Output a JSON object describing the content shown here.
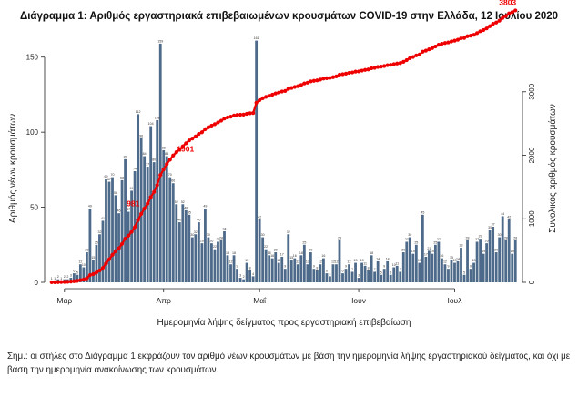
{
  "chart_data": {
    "type": "bar",
    "title": "Διάγραμμα 1: Αριθμός εργαστηριακά επιβεβαιωμένων κρουσμάτων COVID-19 στην Ελλάδα, 12 Ιουλίου 2020",
    "xlabel": "Ημερομηνία λήψης δείγματος προς εργαστηριακή επιβεβαίωση",
    "ylabel": "Αριθμός νέων κρουσμάτων",
    "y2label": "Συνολικός αριθμός κρουσμάτων",
    "x_start": "2020-02-26",
    "x_end": "2020-07-12",
    "ylim": [
      0,
      165
    ],
    "y2lim": [
      0,
      3900
    ],
    "yticks": [
      "0",
      "50",
      "100",
      "150"
    ],
    "y2ticks": [
      "0",
      "1000",
      "2000",
      "3000"
    ],
    "xticks": [
      {
        "label": "Μαρ",
        "date": "2020-03-01"
      },
      {
        "label": "Απρ",
        "date": "2020-04-01"
      },
      {
        "label": "Μαΐ",
        "date": "2020-05-01"
      },
      {
        "label": "Ιουν",
        "date": "2020-06-01"
      },
      {
        "label": "Ιουλ",
        "date": "2020-07-01"
      }
    ],
    "grid": false,
    "series": [
      {
        "values": [
          1,
          1,
          2,
          1,
          2,
          2,
          3,
          6,
          5,
          12,
          10,
          20,
          49,
          15,
          25,
          32,
          41,
          69,
          67,
          70,
          58,
          46,
          68,
          82,
          47,
          61,
          74,
          112,
          96,
          84,
          77,
          104,
          80,
          108,
          159,
          88,
          84,
          70,
          66,
          52,
          40,
          52,
          48,
          45,
          30,
          32,
          40,
          26,
          49,
          30,
          26,
          22,
          27,
          28,
          34,
          18,
          12,
          18,
          9,
          3,
          2,
          13,
          8,
          4,
          161,
          42,
          30,
          22,
          18,
          16,
          20,
          13,
          17,
          9,
          32,
          15,
          16,
          12,
          18,
          25,
          12,
          20,
          9,
          8,
          12,
          16,
          6,
          4,
          12,
          12,
          28,
          6,
          9,
          12,
          7,
          13,
          3,
          13,
          11,
          8,
          18,
          7,
          14,
          5,
          9,
          14,
          5,
          10,
          11,
          7,
          20,
          27,
          30,
          19,
          25,
          13,
          45,
          17,
          21,
          19,
          25,
          27,
          16,
          12,
          9,
          15,
          13,
          14,
          23,
          5,
          28,
          9,
          13,
          27,
          29,
          19,
          26,
          35,
          37,
          20,
          30,
          44,
          28,
          42,
          19,
          28
        ],
        "color": "#4d6a8a"
      },
      {
        "type": "line",
        "values": [
          1,
          2,
          4,
          5,
          7,
          9,
          12,
          18,
          23,
          35,
          45,
          65,
          114,
          129,
          154,
          186,
          227,
          296,
          363,
          433,
          491,
          537,
          605,
          687,
          734,
          795,
          869,
          981,
          1077,
          1161,
          1238,
          1342,
          1422,
          1530,
          1689,
          1777,
          1861,
          1931,
          1997,
          2049,
          2089,
          2141,
          2189,
          2234,
          2264,
          2296,
          2336,
          2362,
          2411,
          2441,
          2467,
          2489,
          2516,
          2544,
          2578,
          2596,
          2608,
          2626,
          2635,
          2638,
          2640,
          2653,
          2661,
          2665,
          2826,
          2868,
          2898,
          2920,
          2938,
          2954,
          2974,
          2987,
          3004,
          3013,
          3045,
          3060,
          3076,
          3088,
          3106,
          3131,
          3143,
          3163,
          3172,
          3180,
          3192,
          3208,
          3214,
          3218,
          3230,
          3242,
          3270,
          3276,
          3285,
          3297,
          3304,
          3317,
          3320,
          3333,
          3344,
          3352,
          3370,
          3377,
          3391,
          3396,
          3405,
          3419,
          3424,
          3434,
          3445,
          3452,
          3472,
          3499,
          3529,
          3548,
          3573,
          3586,
          3631,
          3648,
          3669,
          3688,
          3713,
          3740,
          3756,
          3768,
          3777,
          3792,
          3805,
          3819,
          3842,
          3847,
          3875,
          3884,
          3897,
          3924,
          3953,
          3972,
          3998,
          4033,
          4070,
          4090,
          4120,
          4164,
          4192,
          4234,
          4253,
          4281
        ],
        "color": "#ee0000"
      }
    ],
    "annotations": [
      "981",
      "1901",
      "3803"
    ]
  },
  "footnote": {
    "line1": "Σημ.: οι στήλες στο Διάγραμμα 1 εκφράζουν τον αριθμό νέων κρουσμάτων με βάση την ημερομηνία λήψης εργαστηριακού δείγματος, και όχι με",
    "line2": "βάση την ημερομηνία ανακοίνωσης των κρουσμάτων."
  }
}
